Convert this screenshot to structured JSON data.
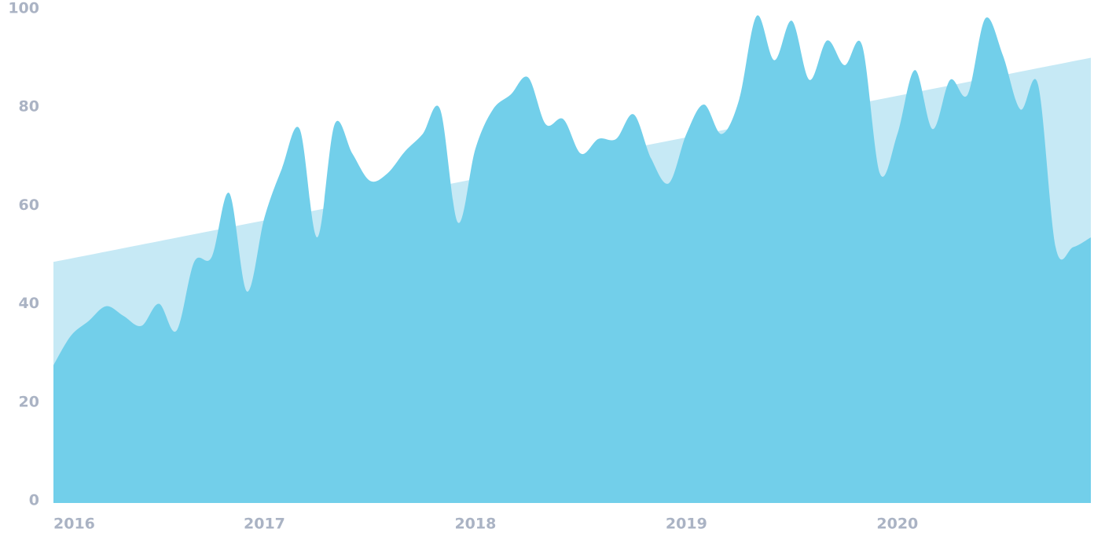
{
  "chart_data": {
    "type": "area",
    "x": [
      2016,
      2016.083,
      2016.167,
      2016.25,
      2016.333,
      2016.417,
      2016.5,
      2016.583,
      2016.667,
      2016.75,
      2016.833,
      2016.917,
      2017,
      2017.083,
      2017.167,
      2017.25,
      2017.333,
      2017.417,
      2017.5,
      2017.583,
      2017.667,
      2017.75,
      2017.833,
      2017.917,
      2018,
      2018.083,
      2018.167,
      2018.25,
      2018.333,
      2018.417,
      2018.5,
      2018.583,
      2018.667,
      2018.75,
      2018.833,
      2018.917,
      2019,
      2019.083,
      2019.167,
      2019.25,
      2019.333,
      2019.417,
      2019.5,
      2019.583,
      2019.667,
      2019.75,
      2019.833,
      2019.917,
      2020,
      2020.083,
      2020.167,
      2020.25,
      2020.333,
      2020.417,
      2020.5,
      2020.583,
      2020.667,
      2020.75,
      2020.833,
      2020.917
    ],
    "series": [
      {
        "color": "#c6e9f5",
        "x": [
          2016,
          2020.917
        ],
        "values": [
          49,
          90.5
        ]
      },
      {
        "color": "#72cfea",
        "values": [
          28,
          34,
          37,
          40,
          38,
          36,
          40.5,
          35,
          49,
          50,
          63,
          43,
          58,
          68,
          76,
          54,
          77,
          71,
          65.5,
          67,
          71.5,
          75,
          80,
          57,
          72,
          80,
          83,
          86.5,
          77,
          78,
          71,
          74,
          74,
          79,
          70,
          65,
          75,
          81,
          75,
          82,
          99,
          90,
          98,
          86,
          94,
          89,
          93,
          67,
          75,
          88,
          76,
          86,
          83,
          98.5,
          91,
          80,
          85,
          52,
          52,
          54
        ]
      }
    ],
    "xlim": [
      2016,
      2020.917
    ],
    "xticks": [
      2016,
      2017,
      2018,
      2019,
      2020
    ],
    "ylim": [
      0,
      100
    ],
    "yticks": [
      0,
      20,
      40,
      60,
      80,
      100
    ]
  }
}
